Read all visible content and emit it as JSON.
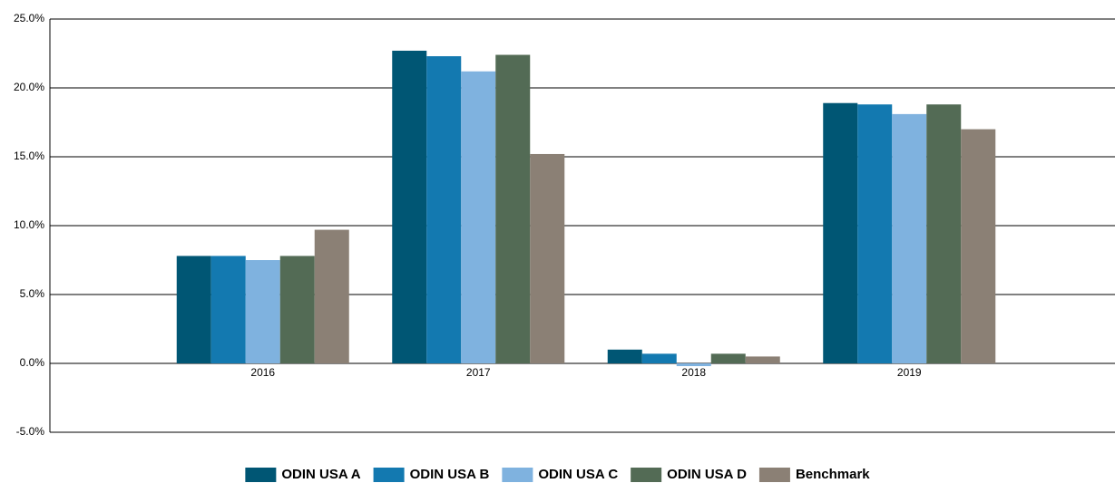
{
  "chart_data": {
    "type": "bar",
    "categories": [
      "2016",
      "2017",
      "2018",
      "2019"
    ],
    "series": [
      {
        "name": "ODIN USA A",
        "color": "#005674",
        "values": [
          7.8,
          22.7,
          1.0,
          18.9
        ]
      },
      {
        "name": "ODIN USA B",
        "color": "#1379b0",
        "values": [
          7.8,
          22.3,
          0.7,
          18.8
        ]
      },
      {
        "name": "ODIN USA C",
        "color": "#7fb2df",
        "values": [
          7.5,
          21.2,
          -0.2,
          18.1
        ]
      },
      {
        "name": "ODIN USA D",
        "color": "#536b55",
        "values": [
          7.8,
          22.4,
          0.7,
          18.8
        ]
      },
      {
        "name": "Benchmark",
        "color": "#8b8075",
        "values": [
          9.7,
          15.2,
          0.5,
          17.0
        ]
      }
    ],
    "ylim": [
      -5,
      25
    ],
    "yticks": [
      {
        "value": -5,
        "label": "-5.0%"
      },
      {
        "value": 0,
        "label": "0.0%"
      },
      {
        "value": 5,
        "label": "5.0%"
      },
      {
        "value": 10,
        "label": "10.0%"
      },
      {
        "value": 15,
        "label": "15.0%"
      },
      {
        "value": 20,
        "label": "20.0%"
      },
      {
        "value": 25,
        "label": "25.0%"
      }
    ],
    "grid": true,
    "legend": "bottom"
  }
}
